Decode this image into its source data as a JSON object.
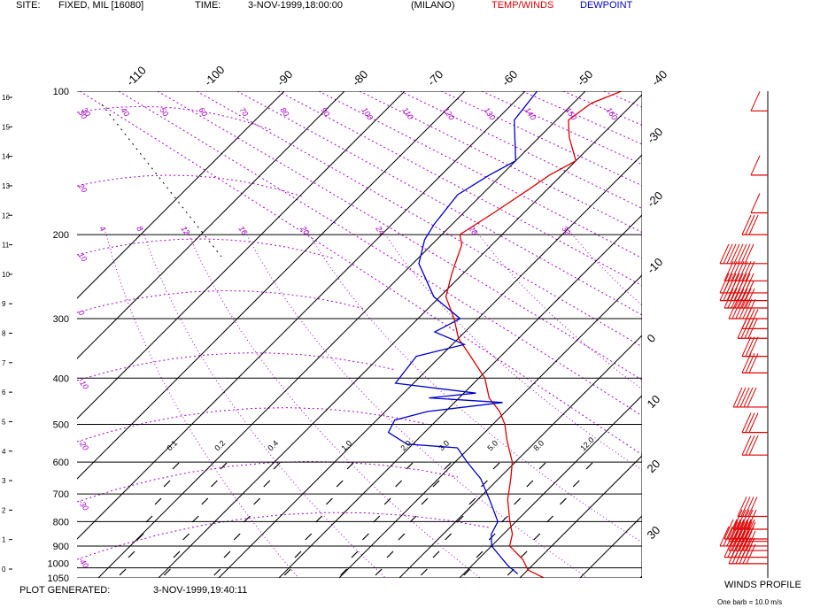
{
  "header": {
    "site_label": "SITE:",
    "site_value": "FIXED, MIL [16080]",
    "time_label": "TIME:",
    "time_value": "3-NOV-1999,18:00:00",
    "location": "(MILANO)",
    "temp_legend": "TEMP/WINDS",
    "dew_legend": "DEWPOINT"
  },
  "footer": {
    "generated_label": "PLOT GENERATED:",
    "generated_value": "3-NOV-1999,19:40:11",
    "winds_title": "WINDS PROFILE",
    "barb_note": "One barb = 10.0 m/s"
  },
  "colors": {
    "temperature": "#dd0000",
    "dewpoint": "#0000cc",
    "guides": "#aa00cc",
    "grid": "#000000"
  },
  "chart_data": {
    "type": "line",
    "x_unit": "temperature (°C)",
    "y_unit": "pressure (hPa)",
    "ylim": [
      1050,
      100
    ],
    "y_scale": "log",
    "isobars": [
      100,
      200,
      300,
      400,
      500,
      600,
      700,
      800,
      900,
      1000,
      1050
    ],
    "isobar_labels": [
      "100",
      "200",
      "300",
      "400",
      "500",
      "600",
      "700",
      "800",
      "900",
      "1000",
      "1050"
    ],
    "height_ticks": [
      "16",
      "15",
      "14",
      "13",
      "12",
      "11",
      "10",
      "9",
      "8",
      "7",
      "6",
      "5",
      "4",
      "3",
      "2",
      "1",
      "0"
    ],
    "isotherms": [
      -110,
      -100,
      -90,
      -80,
      -70,
      -60,
      -50,
      -40,
      -30,
      -20,
      -10,
      0,
      10,
      20,
      30
    ],
    "isotherm_labels_top": [
      "-110",
      "-100",
      "-90",
      "-80",
      "-70",
      "-60",
      "-50",
      "-40"
    ],
    "isotherm_labels_right": [
      "-30",
      "-20",
      "-10",
      "0",
      "10",
      "20",
      "30"
    ],
    "dry_adiabat_labels": [
      "30",
      "40",
      "50",
      "60",
      "70",
      "80",
      "90",
      "100",
      "110",
      "120",
      "130",
      "140",
      "150",
      "160"
    ],
    "moist_adiabat_labels": [
      "4",
      "8",
      "12",
      "16",
      "20",
      "24",
      "28",
      "32"
    ],
    "left_guide_labels": [
      "30",
      "20",
      "10",
      "0",
      "-10",
      "-20",
      "-30",
      "-40"
    ],
    "mixing_ratio_labels": [
      "0.1",
      "0.2",
      "0.4",
      "1.0",
      "2.0",
      "3.0",
      "5.0",
      "8.0",
      "12.0"
    ],
    "series": [
      {
        "name": "TEMP/WINDS",
        "points": [
          {
            "p": 1050,
            "t": 14.0
          },
          {
            "p": 1010,
            "t": 10.0
          },
          {
            "p": 960,
            "t": 7.4
          },
          {
            "p": 900,
            "t": 3.0
          },
          {
            "p": 850,
            "t": 1.5
          },
          {
            "p": 800,
            "t": -1.0
          },
          {
            "p": 720,
            "t": -5.0
          },
          {
            "p": 650,
            "t": -8.0
          },
          {
            "p": 600,
            "t": -10.5
          },
          {
            "p": 540,
            "t": -15.0
          },
          {
            "p": 500,
            "t": -18.0
          },
          {
            "p": 470,
            "t": -21.0
          },
          {
            "p": 440,
            "t": -25.0
          },
          {
            "p": 400,
            "t": -29.0
          },
          {
            "p": 360,
            "t": -35.0
          },
          {
            "p": 330,
            "t": -40.0
          },
          {
            "p": 300,
            "t": -44.0
          },
          {
            "p": 270,
            "t": -49.0
          },
          {
            "p": 240,
            "t": -52.0
          },
          {
            "p": 210,
            "t": -55.0
          },
          {
            "p": 200,
            "t": -57.0
          },
          {
            "p": 180,
            "t": -55.0
          },
          {
            "p": 160,
            "t": -53.0
          },
          {
            "p": 150,
            "t": -52.0
          },
          {
            "p": 140,
            "t": -50.0
          },
          {
            "p": 125,
            "t": -55.0
          },
          {
            "p": 115,
            "t": -58.0
          },
          {
            "p": 106,
            "t": -57.0
          },
          {
            "p": 100,
            "t": -54.0
          }
        ]
      },
      {
        "name": "DEWPOINT",
        "points": [
          {
            "p": 1030,
            "t": 9.0
          },
          {
            "p": 990,
            "t": 6.0
          },
          {
            "p": 900,
            "t": 0.0
          },
          {
            "p": 850,
            "t": -2.0
          },
          {
            "p": 800,
            "t": -3.0
          },
          {
            "p": 720,
            "t": -8.0
          },
          {
            "p": 650,
            "t": -13.0
          },
          {
            "p": 600,
            "t": -18.0
          },
          {
            "p": 560,
            "t": -22.0
          },
          {
            "p": 550,
            "t": -31.0
          },
          {
            "p": 520,
            "t": -36.0
          },
          {
            "p": 490,
            "t": -37.0
          },
          {
            "p": 470,
            "t": -33.0
          },
          {
            "p": 450,
            "t": -22.0
          },
          {
            "p": 440,
            "t": -35.0
          },
          {
            "p": 430,
            "t": -28.0
          },
          {
            "p": 410,
            "t": -43.0
          },
          {
            "p": 360,
            "t": -44.0
          },
          {
            "p": 340,
            "t": -38.0
          },
          {
            "p": 320,
            "t": -45.0
          },
          {
            "p": 300,
            "t": -43.0
          },
          {
            "p": 270,
            "t": -51.0
          },
          {
            "p": 230,
            "t": -59.0
          },
          {
            "p": 205,
            "t": -62.0
          },
          {
            "p": 190,
            "t": -63.0
          },
          {
            "p": 165,
            "t": -64.0
          },
          {
            "p": 150,
            "t": -62.0
          },
          {
            "p": 140,
            "t": -60.0
          },
          {
            "p": 115,
            "t": -67.0
          },
          {
            "p": 100,
            "t": -68.0
          }
        ]
      }
    ],
    "winds": [
      {
        "p": 110,
        "speed": 10
      },
      {
        "p": 150,
        "speed": 10
      },
      {
        "p": 180,
        "speed": 10
      },
      {
        "p": 200,
        "speed": 30
      },
      {
        "p": 230,
        "speed": 80
      },
      {
        "p": 250,
        "speed": 70
      },
      {
        "p": 265,
        "speed": 80
      },
      {
        "p": 275,
        "speed": 80
      },
      {
        "p": 285,
        "speed": 70
      },
      {
        "p": 300,
        "speed": 60
      },
      {
        "p": 315,
        "speed": 30
      },
      {
        "p": 330,
        "speed": 40
      },
      {
        "p": 360,
        "speed": 30
      },
      {
        "p": 390,
        "speed": 30
      },
      {
        "p": 460,
        "speed": 50
      },
      {
        "p": 520,
        "speed": 30
      },
      {
        "p": 580,
        "speed": 30
      },
      {
        "p": 780,
        "speed": 40
      },
      {
        "p": 830,
        "speed": 50
      },
      {
        "p": 870,
        "speed": 70
      },
      {
        "p": 880,
        "speed": 60
      },
      {
        "p": 900,
        "speed": 80
      },
      {
        "p": 920,
        "speed": 60
      },
      {
        "p": 950,
        "speed": 70
      },
      {
        "p": 980,
        "speed": 60
      }
    ]
  }
}
